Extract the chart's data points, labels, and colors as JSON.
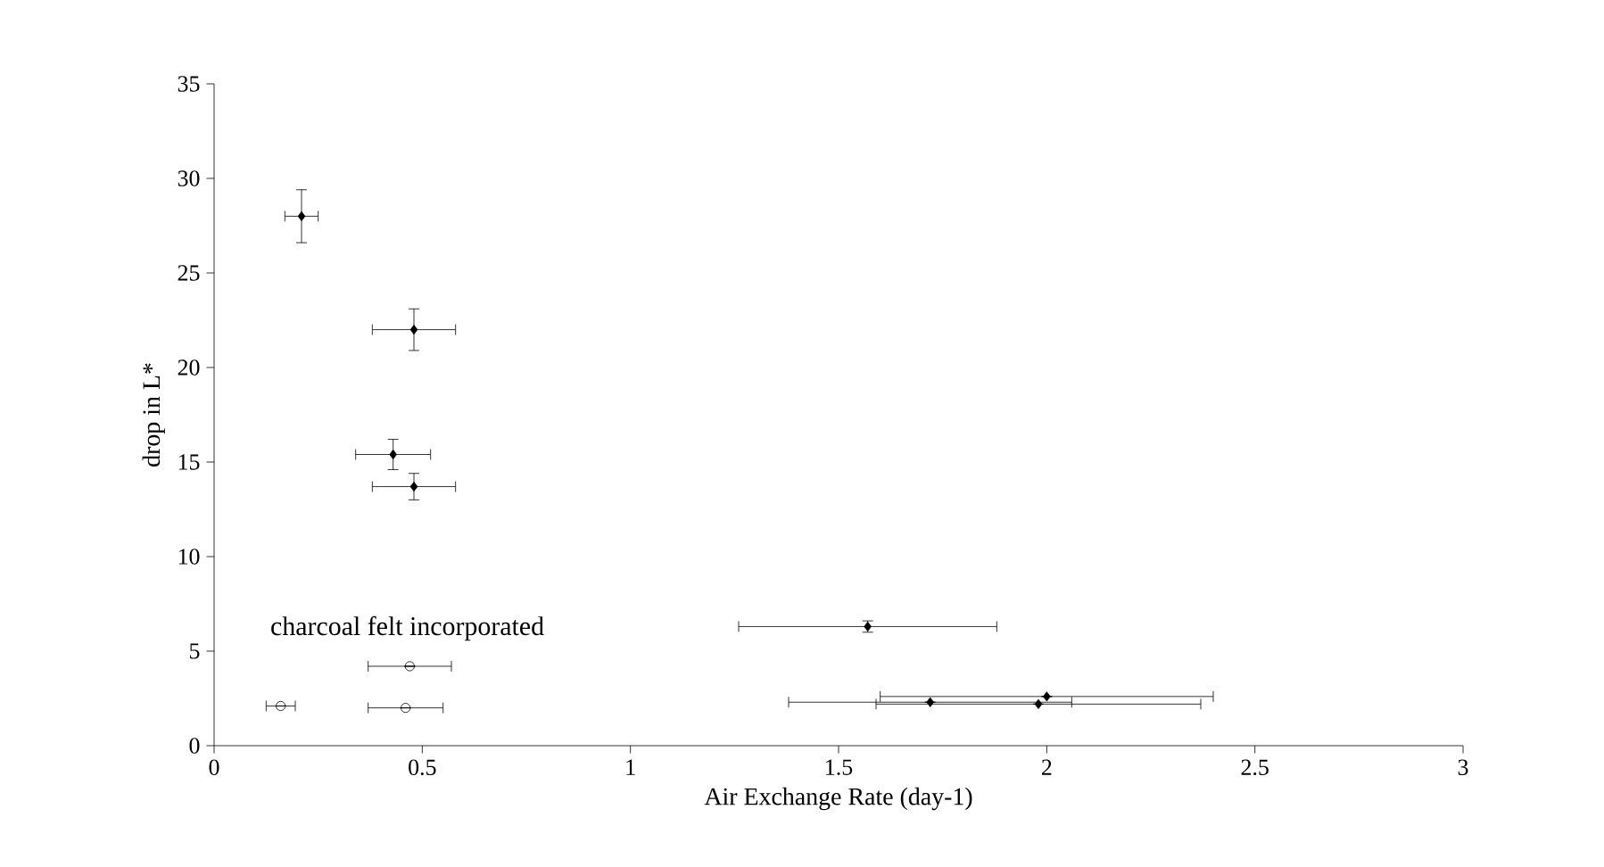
{
  "chart_data": {
    "type": "scatter",
    "xlabel": "Air Exchange Rate (day-1)",
    "ylabel": "drop in L*",
    "xlim": [
      0,
      3
    ],
    "xticks": [
      0,
      0.5,
      1,
      1.5,
      2,
      2.5,
      3
    ],
    "ylim": [
      0,
      35
    ],
    "yticks": [
      0,
      5,
      10,
      15,
      20,
      25,
      30,
      35
    ],
    "annotations": [
      "charcoal felt incorporated"
    ],
    "grid": false,
    "legend": false,
    "series": [
      {
        "color": "#000000",
        "marker": "diamond",
        "x": [
          0.21,
          0.48,
          0.43,
          0.48,
          1.57,
          1.72,
          1.98,
          2.0
        ],
        "values": [
          28,
          22,
          15.4,
          13.7,
          6.3,
          2.3,
          2.2,
          2.6
        ],
        "errors": [
          1.4,
          1.1,
          0.8,
          0.7,
          0.3,
          null,
          null,
          null
        ],
        "xerrors": [
          0.04,
          0.1,
          0.09,
          0.1,
          0.31,
          0.34,
          0.39,
          0.4
        ]
      },
      {
        "color": "#000000",
        "marker": "circle",
        "x": [
          0.47,
          0.16,
          0.46
        ],
        "values": [
          4.2,
          2.1,
          2.0
        ],
        "errors": [
          null,
          null,
          null
        ],
        "xerrors": [
          0.1,
          0.035,
          0.09
        ]
      }
    ]
  }
}
